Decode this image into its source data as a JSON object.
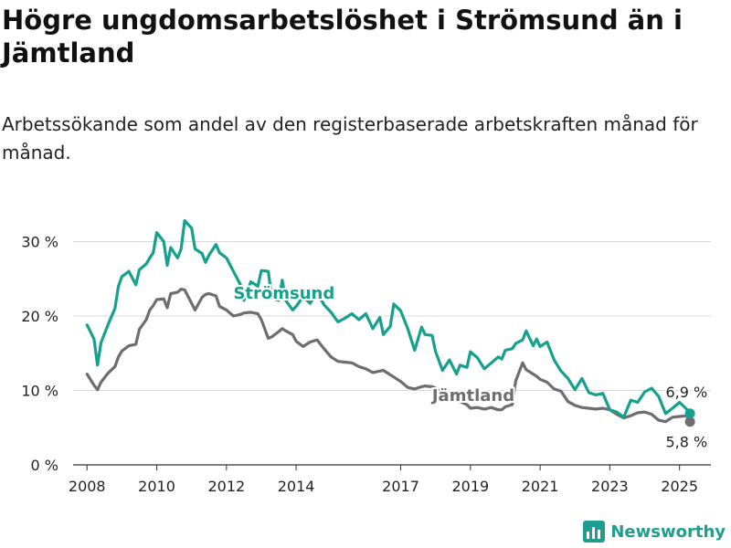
{
  "page": {
    "title": "Högre ungdomsarbetslöshet i Strömsund än i Jämtland",
    "subtitle": "Arbetssökande som andel av den registerbaserade arbetskraften månad för månad."
  },
  "brand": {
    "name": "Newsworthy",
    "icon": "bar-chart-logo-icon"
  },
  "colors": {
    "stromsund": "#16a18f",
    "jamtland": "#6d6d72",
    "grid": "#d9d9d9",
    "text": "#222222"
  },
  "chart_data": {
    "type": "line",
    "title": "Högre ungdomsarbetslöshet i Strömsund än i Jämtland",
    "subtitle": "Arbetssökande som andel av den registerbaserade arbetskraften månad för månad.",
    "xlabel": "",
    "ylabel": "",
    "xlim": [
      2007.6,
      2025.9
    ],
    "ylim": [
      0,
      33
    ],
    "y_ticks": [
      0,
      10,
      20,
      30
    ],
    "y_tick_labels": [
      "0 %",
      "10 %",
      "20 %",
      "30 %"
    ],
    "x_ticks": [
      2008,
      2010,
      2012,
      2014,
      2017,
      2019,
      2021,
      2023,
      2025
    ],
    "x_tick_labels": [
      "2008",
      "2010",
      "2012",
      "2014",
      "2017",
      "2019",
      "2021",
      "2023",
      "2025"
    ],
    "grid": true,
    "legend": "inline labels",
    "series": [
      {
        "name": "Strömsund",
        "last_value_label": "6,9 %",
        "x": [
          2008.0,
          2008.2,
          2008.3,
          2008.4,
          2008.6,
          2008.8,
          2008.9,
          2009.0,
          2009.2,
          2009.4,
          2009.5,
          2009.7,
          2009.8,
          2009.9,
          2010.0,
          2010.2,
          2010.3,
          2010.4,
          2010.6,
          2010.7,
          2010.8,
          2011.0,
          2011.1,
          2011.3,
          2011.4,
          2011.5,
          2011.7,
          2011.8,
          2012.0,
          2012.2,
          2012.4,
          2012.5,
          2012.7,
          2012.9,
          2013.0,
          2013.2,
          2013.3,
          2013.5,
          2013.6,
          2013.7,
          2013.9,
          2014.0,
          2014.2,
          2014.4,
          2014.6,
          2014.8,
          2015.0,
          2015.2,
          2015.4,
          2015.6,
          2015.8,
          2016.0,
          2016.2,
          2016.4,
          2016.5,
          2016.7,
          2016.8,
          2017.0,
          2017.2,
          2017.4,
          2017.6,
          2017.7,
          2017.9,
          2018.0,
          2018.2,
          2018.4,
          2018.6,
          2018.7,
          2018.9,
          2019.0,
          2019.2,
          2019.4,
          2019.6,
          2019.8,
          2019.9,
          2020.0,
          2020.2,
          2020.3,
          2020.5,
          2020.6,
          2020.8,
          2020.9,
          2021.0,
          2021.2,
          2021.4,
          2021.6,
          2021.8,
          2022.0,
          2022.2,
          2022.4,
          2022.6,
          2022.8,
          2023.0,
          2023.2,
          2023.4,
          2023.6,
          2023.8,
          2024.0,
          2024.2,
          2024.4,
          2024.6,
          2024.8,
          2025.0,
          2025.2,
          2025.3
        ],
        "values": [
          18.8,
          16.9,
          13.4,
          16.4,
          18.8,
          21.0,
          24.0,
          25.3,
          26.0,
          24.2,
          26.2,
          27.0,
          27.8,
          28.5,
          31.2,
          30.0,
          26.8,
          29.2,
          27.8,
          29.0,
          32.8,
          31.8,
          29.0,
          28.4,
          27.2,
          28.2,
          29.6,
          28.5,
          27.8,
          26.0,
          24.2,
          22.1,
          24.6,
          24.0,
          26.1,
          26.0,
          22.4,
          22.1,
          24.8,
          22.1,
          20.8,
          21.3,
          22.6,
          21.7,
          23.2,
          21.5,
          20.5,
          19.2,
          19.7,
          20.3,
          19.5,
          20.3,
          18.3,
          19.8,
          17.5,
          18.6,
          21.6,
          20.7,
          18.3,
          15.4,
          18.5,
          17.5,
          17.4,
          15.2,
          12.7,
          14.1,
          12.2,
          13.4,
          13.1,
          15.2,
          14.4,
          12.9,
          13.7,
          14.5,
          14.2,
          15.4,
          15.6,
          16.3,
          16.8,
          18.0,
          16.0,
          16.9,
          15.9,
          16.5,
          14.1,
          12.6,
          11.6,
          10.1,
          11.6,
          9.7,
          9.4,
          9.6,
          7.4,
          7.1,
          6.4,
          8.7,
          8.4,
          9.8,
          10.3,
          9.2,
          6.9,
          7.6,
          8.4,
          7.5,
          6.9
        ]
      },
      {
        "name": "Jämtland",
        "last_value_label": "5,8 %",
        "x": [
          2008.0,
          2008.2,
          2008.3,
          2008.4,
          2008.6,
          2008.8,
          2008.9,
          2009.0,
          2009.2,
          2009.4,
          2009.5,
          2009.7,
          2009.8,
          2009.9,
          2010.0,
          2010.2,
          2010.3,
          2010.4,
          2010.6,
          2010.7,
          2010.8,
          2011.0,
          2011.1,
          2011.3,
          2011.4,
          2011.5,
          2011.7,
          2011.8,
          2012.0,
          2012.2,
          2012.4,
          2012.5,
          2012.7,
          2012.9,
          2013.0,
          2013.2,
          2013.3,
          2013.5,
          2013.6,
          2013.7,
          2013.9,
          2014.0,
          2014.2,
          2014.4,
          2014.6,
          2014.8,
          2015.0,
          2015.2,
          2015.4,
          2015.6,
          2015.8,
          2016.0,
          2016.2,
          2016.4,
          2016.5,
          2016.7,
          2016.8,
          2017.0,
          2017.2,
          2017.4,
          2017.6,
          2017.7,
          2017.9,
          2018.0,
          2018.2,
          2018.4,
          2018.6,
          2018.7,
          2018.9,
          2019.0,
          2019.2,
          2019.4,
          2019.6,
          2019.8,
          2019.9,
          2020.0,
          2020.2,
          2020.3,
          2020.5,
          2020.6,
          2020.8,
          2020.9,
          2021.0,
          2021.2,
          2021.4,
          2021.6,
          2021.8,
          2022.0,
          2022.2,
          2022.4,
          2022.6,
          2022.8,
          2023.0,
          2023.2,
          2023.4,
          2023.6,
          2023.8,
          2024.0,
          2024.2,
          2024.4,
          2024.6,
          2024.8,
          2025.0,
          2025.2,
          2025.3
        ],
        "values": [
          12.2,
          10.7,
          10.1,
          11.1,
          12.3,
          13.2,
          14.5,
          15.3,
          16.0,
          16.2,
          18.2,
          19.5,
          20.8,
          21.4,
          22.2,
          22.3,
          21.1,
          23.0,
          23.2,
          23.6,
          23.5,
          21.7,
          20.8,
          22.5,
          22.9,
          23.0,
          22.7,
          21.3,
          20.8,
          20.0,
          20.2,
          20.4,
          20.5,
          20.3,
          19.5,
          17.0,
          17.2,
          17.9,
          18.3,
          18.0,
          17.5,
          16.6,
          15.9,
          16.5,
          16.8,
          15.6,
          14.5,
          13.9,
          13.8,
          13.7,
          13.2,
          12.9,
          12.4,
          12.6,
          12.7,
          12.1,
          11.8,
          11.2,
          10.4,
          10.2,
          10.5,
          10.6,
          10.5,
          10.3,
          9.6,
          9.4,
          8.8,
          8.5,
          8.1,
          7.6,
          7.7,
          7.5,
          7.7,
          7.4,
          7.4,
          7.8,
          8.1,
          11.3,
          13.7,
          12.8,
          12.2,
          11.9,
          11.5,
          11.1,
          10.2,
          9.9,
          8.5,
          8.0,
          7.7,
          7.6,
          7.5,
          7.6,
          7.4,
          6.8,
          6.3,
          6.6,
          7.0,
          7.1,
          6.8,
          6.0,
          5.8,
          6.4,
          6.5,
          6.6,
          5.8
        ]
      }
    ],
    "annotations": [
      "Strömsund",
      "Jämtland",
      "6,9 %",
      "5,8 %"
    ]
  }
}
